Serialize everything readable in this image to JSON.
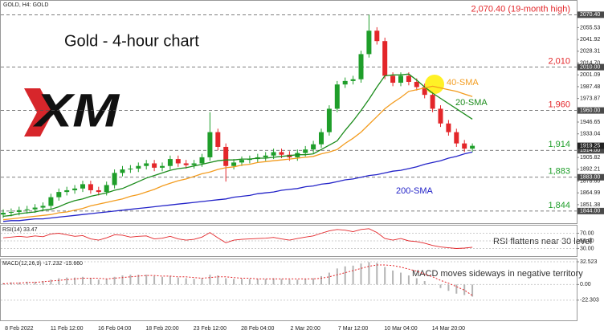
{
  "chart_data": [
    {
      "type": "candlestick",
      "title": "Gold - 4-hour chart",
      "symbol_label": "GOLD, H4: GOLD",
      "logo": "XM",
      "categories": [
        null,
        null,
        "8 Feb 2022",
        null,
        null,
        null,
        null,
        null,
        "11 Feb 12:00",
        null,
        null,
        null,
        null,
        null,
        "16 Feb 04:00",
        null,
        null,
        null,
        null,
        null,
        "18 Feb 20:00",
        null,
        null,
        null,
        null,
        null,
        "23 Feb 12:00",
        null,
        null,
        null,
        null,
        null,
        "28 Feb 04:00",
        null,
        null,
        null,
        null,
        null,
        "2 Mar 20:00",
        null,
        null,
        null,
        null,
        null,
        "7 Mar 12:00",
        null,
        null,
        null,
        null,
        null,
        "10 Mar 04:00",
        null,
        null,
        null,
        null,
        null,
        "14 Mar 20:00",
        null,
        null,
        null
      ],
      "open": [
        1840,
        1842,
        1843,
        1845,
        1846,
        1848,
        1850,
        1860,
        1866,
        1868,
        1870,
        1875,
        1868,
        1866,
        1874,
        1888,
        1892,
        1893,
        1896,
        1899,
        1894,
        1896,
        1904,
        1899,
        1897,
        1899,
        1906,
        1935,
        1918,
        1896,
        1900,
        1903,
        1904,
        1906,
        1908,
        1912,
        1909,
        1906,
        1911,
        1915,
        1921,
        1935,
        1962,
        1990,
        1994,
        1996,
        2025,
        2052,
        2040,
        2000,
        1992,
        2000,
        1993,
        1987,
        1978,
        1962,
        1945,
        1935,
        1922,
        1916
      ],
      "high": [
        1846,
        1847,
        1849,
        1850,
        1852,
        1854,
        1864,
        1870,
        1872,
        1874,
        1879,
        1879,
        1872,
        1878,
        1892,
        1896,
        1897,
        1900,
        1903,
        1903,
        1900,
        1908,
        1908,
        1903,
        1903,
        1910,
        1958,
        1939,
        1922,
        1904,
        1907,
        1908,
        1910,
        1912,
        1916,
        1916,
        1913,
        1915,
        1919,
        1925,
        1939,
        1966,
        1994,
        1998,
        2000,
        2029,
        2070.4,
        2056,
        2044,
        2004,
        2004,
        2004,
        1997,
        1991,
        1982,
        1966,
        1949,
        1939,
        1926,
        1922
      ],
      "low": [
        1836,
        1838,
        1839,
        1841,
        1842,
        1844,
        1846,
        1856,
        1862,
        1864,
        1866,
        1864,
        1862,
        1862,
        1870,
        1884,
        1888,
        1889,
        1892,
        1890,
        1890,
        1892,
        1895,
        1893,
        1893,
        1895,
        1902,
        1914,
        1878,
        1892,
        1896,
        1899,
        1900,
        1902,
        1904,
        1905,
        1902,
        1902,
        1907,
        1911,
        1917,
        1931,
        1958,
        1986,
        1990,
        1992,
        2021,
        2036,
        1996,
        1988,
        1988,
        1989,
        1983,
        1974,
        1958,
        1941,
        1931,
        1918,
        1912,
        1912
      ],
      "close": [
        1842,
        1843,
        1845,
        1846,
        1848,
        1850,
        1860,
        1866,
        1868,
        1870,
        1875,
        1868,
        1866,
        1874,
        1888,
        1892,
        1893,
        1896,
        1899,
        1894,
        1896,
        1904,
        1899,
        1897,
        1899,
        1906,
        1935,
        1918,
        1896,
        1900,
        1903,
        1904,
        1906,
        1908,
        1912,
        1909,
        1906,
        1911,
        1915,
        1921,
        1935,
        1962,
        1990,
        1994,
        1996,
        2025,
        2052,
        2040,
        2000,
        1992,
        2000,
        1993,
        1987,
        1978,
        1962,
        1945,
        1935,
        1922,
        1916,
        1919.25
      ],
      "up_color": "#1f9e2a",
      "down_color": "#e3262a",
      "series": [
        {
          "name": "20-SMA",
          "color": "#1c8c1c",
          "values": [
            1838,
            1839,
            1841,
            1842,
            1843,
            1845,
            1846,
            1849,
            1853,
            1856,
            1858,
            1861,
            1863,
            1865,
            1868,
            1870,
            1874,
            1878,
            1882,
            1885,
            1888,
            1891,
            1893,
            1894,
            1896,
            1898,
            1900,
            1902,
            1903,
            1903,
            1904,
            1904,
            1905,
            1905,
            1906,
            1907,
            1908,
            1909,
            1909,
            1910,
            1915,
            1920,
            1925,
            1937,
            1948,
            1960,
            1973,
            1987,
            2000,
            2001,
            2001,
            2002,
            1995,
            1987,
            1980,
            1974,
            1968,
            1962,
            1956,
            1950
          ]
        },
        {
          "name": "40-SMA",
          "color": "#f39c1f",
          "values": [
            1834,
            1835,
            1836,
            1837,
            1838,
            1839,
            1840,
            1842,
            1843,
            1845,
            1847,
            1850,
            1852,
            1854,
            1856,
            1858,
            1861,
            1863,
            1866,
            1869,
            1873,
            1876,
            1879,
            1881,
            1884,
            1887,
            1889,
            1892,
            1894,
            1895,
            1897,
            1898,
            1900,
            1901,
            1902,
            1903,
            1904,
            1905,
            1906,
            1907,
            1910,
            1912,
            1915,
            1922,
            1928,
            1935,
            1944,
            1953,
            1962,
            1969,
            1975,
            1982,
            1984,
            1986,
            1988,
            1986,
            1984,
            1982,
            1979,
            1976
          ]
        },
        {
          "name": "200-SMA",
          "color": "#2323c8",
          "values": [
            1832,
            1833,
            1833,
            1834,
            1835,
            1835,
            1836,
            1837,
            1838,
            1839,
            1840,
            1841,
            1842,
            1843,
            1844,
            1845,
            1846,
            1847,
            1848,
            1849,
            1850,
            1851,
            1852,
            1853,
            1854,
            1855,
            1856,
            1857,
            1858,
            1860,
            1861,
            1862,
            1864,
            1865,
            1866,
            1868,
            1869,
            1870,
            1872,
            1873,
            1875,
            1876,
            1878,
            1880,
            1881,
            1883,
            1885,
            1886,
            1888,
            1890,
            1891,
            1893,
            1895,
            1898,
            1900,
            1902,
            1905,
            1907,
            1910,
            1912
          ]
        }
      ],
      "levels": [
        {
          "value": 2070.4,
          "label": "2,070.40 (19-month high)",
          "price_label": "2070.40",
          "color": "#e3262a"
        },
        {
          "value": 2010,
          "label": "2,010",
          "price_label": "2010.00",
          "color": "#e3262a"
        },
        {
          "value": 1960,
          "label": "1,960",
          "price_label": "1960.00",
          "color": "#e3262a"
        },
        {
          "value": 1914,
          "label": "1,914",
          "price_label": "1914.00",
          "color": "#1f9e2a"
        },
        {
          "value": 1883,
          "label": "1,883",
          "price_label": "1883.00",
          "color": "#1f9e2a"
        },
        {
          "value": 1844,
          "label": "1,844",
          "price_label": "1844.00",
          "color": "#1f9e2a"
        }
      ],
      "last_price": {
        "value": 1919.25,
        "label": "1919.25"
      },
      "ylim": [
        1830,
        2080
      ],
      "yticks": [
        2055.53,
        2041.92,
        2028.31,
        {
          "value": 2014.7,
          "label": "2014.70"
        },
        2001.09,
        1987.48,
        1973.87,
        1946.65,
        1933.04,
        1905.82,
        1892.21,
        {
          "value": 1878.6,
          "label": "1878.60"
        },
        1864.99,
        1851.38
      ]
    },
    {
      "type": "line",
      "title": "RSI(14) 33.47",
      "annotation": "RSI flattens near 30 level",
      "color": "#e3262a",
      "values": [
        58,
        60,
        62,
        60,
        63,
        61,
        68,
        70,
        66,
        62,
        64,
        55,
        52,
        58,
        66,
        65,
        60,
        62,
        63,
        55,
        57,
        62,
        55,
        52,
        54,
        60,
        72,
        58,
        45,
        52,
        54,
        55,
        56,
        57,
        59,
        55,
        52,
        56,
        60,
        63,
        70,
        76,
        80,
        78,
        74,
        80,
        82,
        72,
        56,
        52,
        56,
        50,
        48,
        44,
        38,
        34,
        32,
        30,
        31,
        33.47
      ],
      "ylim": [
        10,
        90
      ],
      "yticks": [
        {
          "value": 70,
          "label": "70.00"
        },
        {
          "value": 50,
          "label": "50.00"
        },
        {
          "value": 30,
          "label": "30.00"
        }
      ],
      "grid": true
    },
    {
      "type": "macd",
      "title": "MACD(12,26,9) -17.232 -15.660",
      "annotation": "MACD moves sideways in negative territory",
      "histogram_color": "#b4b4b4",
      "signal_color": "#e3262a",
      "histogram": [
        2,
        3,
        3,
        4,
        4,
        5,
        7,
        9,
        10,
        10,
        11,
        9,
        7,
        8,
        11,
        13,
        14,
        14,
        14,
        12,
        11,
        12,
        10,
        9,
        8,
        9,
        14,
        13,
        9,
        8,
        8,
        8,
        8,
        8,
        9,
        8,
        7,
        7,
        8,
        9,
        12,
        17,
        23,
        26,
        27,
        30,
        32,
        31,
        25,
        20,
        17,
        13,
        9,
        5,
        0,
        -5,
        -9,
        -13,
        -15,
        -17.232
      ],
      "signal": [
        1,
        2,
        2,
        3,
        3,
        4,
        5,
        6,
        7,
        8,
        9,
        9,
        9,
        8,
        9,
        10,
        11,
        12,
        13,
        13,
        12,
        12,
        11,
        11,
        10,
        9,
        10,
        11,
        11,
        10,
        9,
        9,
        8,
        8,
        8,
        8,
        8,
        8,
        8,
        8,
        9,
        11,
        14,
        17,
        20,
        23,
        26,
        28,
        28,
        27,
        25,
        22,
        19,
        15,
        11,
        6,
        2,
        -3,
        -8,
        -15.66
      ],
      "ylim": [
        -50,
        36
      ],
      "yticks": [
        32.523,
        {
          "value": 0,
          "label": "0.00"
        },
        -22.303
      ],
      "grid": true
    }
  ]
}
